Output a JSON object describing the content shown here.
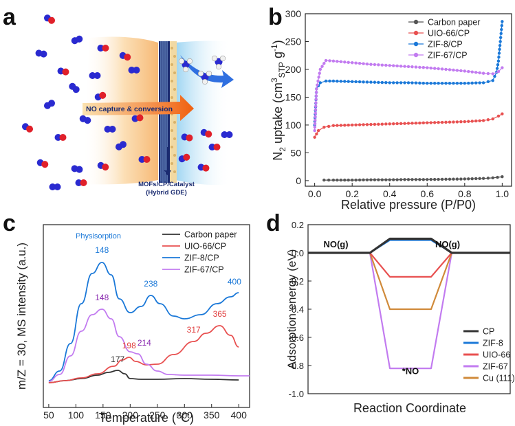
{
  "panels": {
    "a": {
      "letter": "a",
      "label_capture": "NO capture & conversion",
      "label_gde_line1": "MOFs/CP/Catalyst",
      "label_gde_line2": "(Hybrid GDE)",
      "colors": {
        "oxygen": "#e0202a",
        "nitrogen": "#2a2ad0",
        "arrow": "#f07020",
        "blue_arrow": "#2f6fe0"
      }
    },
    "b": {
      "letter": "b"
    },
    "c": {
      "letter": "c",
      "annotation": "Physisorption"
    },
    "d": {
      "letter": "d"
    }
  },
  "chart_data": [
    {
      "id": "b",
      "type": "scatter",
      "xlabel": "Relative pressure (P/P0)",
      "ylabel": "N2 uptake (cm3 STP g-1)",
      "ylabel_parts": [
        "N",
        "2",
        " uptake (cm",
        "3",
        "STP",
        " g",
        "-1",
        ")"
      ],
      "xlim": [
        -0.05,
        1.05
      ],
      "ylim": [
        -10,
        300
      ],
      "xticks": [
        "0.0",
        "0.2",
        "0.4",
        "0.6",
        "0.8",
        "1.0"
      ],
      "xtick_values": [
        0,
        0.2,
        0.4,
        0.6,
        0.8,
        1.0
      ],
      "yticks": [
        "0",
        "50",
        "100",
        "150",
        "200",
        "250",
        "300"
      ],
      "ytick_values": [
        0,
        50,
        100,
        150,
        200,
        250,
        300
      ],
      "legend_position": "top-right",
      "series": [
        {
          "name": "Carbon paper",
          "color": "#555555",
          "x": [
            0.05,
            0.1,
            0.2,
            0.3,
            0.4,
            0.5,
            0.6,
            0.7,
            0.8,
            0.9,
            0.95,
            1.0
          ],
          "y": [
            1,
            1,
            1,
            1.5,
            1.5,
            2,
            2,
            2.5,
            3,
            4,
            5,
            7
          ]
        },
        {
          "name": "UIO-66/CP",
          "color": "#e85050",
          "x": [
            0.0,
            0.02,
            0.05,
            0.1,
            0.2,
            0.3,
            0.4,
            0.5,
            0.6,
            0.7,
            0.8,
            0.9,
            0.95,
            0.98,
            1.0
          ],
          "y": [
            78,
            90,
            96,
            99,
            100,
            101,
            102,
            103,
            104,
            105,
            106,
            108,
            111,
            116,
            120
          ]
        },
        {
          "name": "ZIF-8/CP",
          "color": "#1a78d8",
          "x": [
            0.0,
            0.01,
            0.03,
            0.06,
            0.1,
            0.2,
            0.3,
            0.4,
            0.5,
            0.6,
            0.7,
            0.8,
            0.9,
            0.95,
            0.97,
            0.98,
            0.99,
            1.0
          ],
          "y": [
            100,
            165,
            176,
            179,
            179,
            178,
            177,
            176,
            176,
            175,
            175,
            175,
            176,
            180,
            195,
            215,
            250,
            286
          ]
        },
        {
          "name": "ZIF-67/CP",
          "color": "#c27bf0",
          "x": [
            0.0,
            0.01,
            0.03,
            0.06,
            0.1,
            0.2,
            0.3,
            0.4,
            0.5,
            0.6,
            0.7,
            0.8,
            0.9,
            0.95,
            0.98,
            1.0
          ],
          "y": [
            90,
            165,
            200,
            216,
            215,
            212,
            209,
            207,
            205,
            203,
            200,
            197,
            193,
            192,
            196,
            203
          ]
        }
      ]
    },
    {
      "id": "c",
      "type": "line",
      "xlabel": "Temperature (°C)",
      "ylabel": "m/Z = 30, MS intensity (a.u.)",
      "xlim": [
        40,
        420
      ],
      "xticks": [
        "50",
        "100",
        "150",
        "200",
        "250",
        "300",
        "350",
        "400"
      ],
      "xtick_values": [
        50,
        100,
        150,
        200,
        250,
        300,
        350,
        400
      ],
      "yticks": [],
      "legend_position": "top-right",
      "series": [
        {
          "name": "Carbon paper",
          "color": "#333333",
          "x": [
            50,
            80,
            110,
            140,
            160,
            177,
            190,
            200,
            220,
            250,
            300,
            350,
            400
          ],
          "y": [
            3,
            6,
            9,
            14,
            18,
            21,
            16,
            9,
            8,
            8,
            9,
            8,
            7
          ]
        },
        {
          "name": "UIO-66/CP",
          "color": "#e85050",
          "x": [
            50,
            80,
            110,
            140,
            170,
            185,
            198,
            210,
            230,
            250,
            280,
            317,
            340,
            365,
            385,
            400
          ],
          "y": [
            3,
            6,
            10,
            16,
            27,
            36,
            40,
            34,
            29,
            30,
            44,
            63,
            75,
            86,
            72,
            55
          ]
        },
        {
          "name": "ZIF-8/CP",
          "color": "#1a78d8",
          "x": [
            50,
            70,
            90,
            110,
            130,
            148,
            165,
            180,
            200,
            220,
            238,
            255,
            280,
            300,
            330,
            360,
            385,
            400
          ],
          "y": [
            6,
            20,
            60,
            118,
            162,
            178,
            160,
            125,
            105,
            114,
            130,
            118,
            100,
            96,
            102,
            118,
            128,
            134
          ]
        },
        {
          "name": "ZIF-67/CP",
          "color": "#c27bf0",
          "x": [
            50,
            70,
            90,
            110,
            130,
            148,
            165,
            180,
            200,
            214,
            230,
            250,
            270,
            300,
            350,
            400,
            420
          ],
          "y": [
            5,
            15,
            42,
            78,
            102,
            110,
            96,
            70,
            48,
            45,
            30,
            20,
            15,
            14,
            14,
            13,
            13
          ]
        }
      ],
      "data_labels": [
        {
          "text": "148",
          "x": 148,
          "y": 192,
          "color": "#1a78d8"
        },
        {
          "text": "238",
          "x": 238,
          "y": 143,
          "color": "#1a78d8"
        },
        {
          "text": "400",
          "x": 392,
          "y": 146,
          "color": "#1a78d8"
        },
        {
          "text": "148",
          "x": 148,
          "y": 123,
          "color": "#8a2ab0"
        },
        {
          "text": "214",
          "x": 226,
          "y": 57,
          "color": "#8a2ab0"
        },
        {
          "text": "198",
          "x": 198,
          "y": 53,
          "color": "#e03c3c"
        },
        {
          "text": "317",
          "x": 317,
          "y": 76,
          "color": "#e03c3c"
        },
        {
          "text": "365",
          "x": 365,
          "y": 99,
          "color": "#e03c3c"
        },
        {
          "text": "177",
          "x": 177,
          "y": 33,
          "color": "#333333"
        }
      ]
    },
    {
      "id": "d",
      "type": "line",
      "xlabel": "Reaction Coordinate",
      "ylabel": "Adsorption energy (eV)",
      "ylim": [
        -1.0,
        0.2
      ],
      "yticks": [
        "0.2",
        "0.0",
        "-0.2",
        "-0.4",
        "-0.6",
        "-0.8",
        "-1.0"
      ],
      "ytick_values": [
        0.2,
        0.0,
        -0.2,
        -0.4,
        -0.6,
        -0.8,
        -1.0
      ],
      "x_stages": [
        0,
        1,
        2,
        3,
        4
      ],
      "legend_position": "bottom-right",
      "series": [
        {
          "name": "CP",
          "color": "#333333",
          "values": [
            0,
            0,
            0.1,
            0.1,
            0
          ]
        },
        {
          "name": "ZIF-8",
          "color": "#1a78d8",
          "values": [
            0,
            0,
            0.09,
            0.09,
            0
          ]
        },
        {
          "name": "UIO-66",
          "color": "#e85050",
          "values": [
            0,
            0,
            -0.17,
            -0.17,
            0
          ]
        },
        {
          "name": "ZIF-67",
          "color": "#c27bf0",
          "values": [
            0,
            0,
            -0.82,
            -0.82,
            0
          ]
        },
        {
          "name": "Cu (111)",
          "color": "#d08a3a",
          "values": [
            0,
            0,
            -0.4,
            -0.4,
            0
          ]
        }
      ],
      "annotations": [
        {
          "text": "NO(g)",
          "stage": 0.45,
          "value": 0.04
        },
        {
          "text": "NO(g)",
          "stage": 3.8,
          "value": 0.04
        },
        {
          "text": "*NO",
          "stage": 2.5,
          "value": -0.86
        }
      ]
    }
  ]
}
